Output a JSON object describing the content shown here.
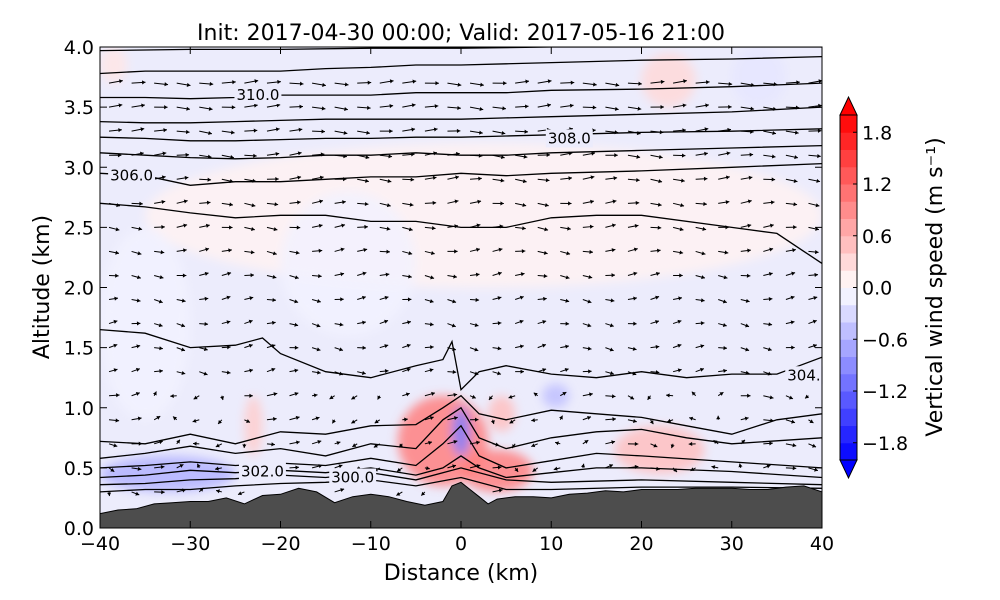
{
  "chart_data": {
    "type": "contour-filled cross-section",
    "title": "Init: 2017-04-30 00:00; Valid: 2017-05-16 21:00",
    "xlabel": "Distance (km)",
    "ylabel": "Altitude (km)",
    "xlim": [
      -40,
      40
    ],
    "ylim": [
      0.0,
      4.0
    ],
    "xticks": [
      -40,
      -30,
      -20,
      -10,
      0,
      10,
      20,
      30,
      40
    ],
    "xtick_labels": [
      "−40",
      "−30",
      "−20",
      "−10",
      "0",
      "10",
      "20",
      "30",
      "40"
    ],
    "yticks": [
      0.0,
      0.5,
      1.0,
      1.5,
      2.0,
      2.5,
      3.0,
      3.5,
      4.0
    ],
    "ytick_labels": [
      "0.0",
      "0.5",
      "1.0",
      "1.5",
      "2.0",
      "2.5",
      "3.0",
      "3.5",
      "4.0"
    ],
    "colorbar": {
      "label": "Vertical wind speed (m s⁻¹)",
      "range": [
        -2.0,
        2.0
      ],
      "ticks": [
        -1.8,
        -1.2,
        -0.6,
        0.0,
        0.6,
        1.2,
        1.8
      ],
      "tick_labels": [
        "−1.8",
        "−1.2",
        "−0.6",
        "0.0",
        "0.6",
        "1.2",
        "1.8"
      ],
      "negative_color": "#0000ff",
      "positive_color": "#ff0000",
      "neutral_color": "#ffffff"
    },
    "terrain": {
      "color": "#4d4d4d",
      "x": [
        -40,
        -38,
        -36,
        -34,
        -32,
        -30,
        -28,
        -26,
        -24,
        -22,
        -20,
        -18,
        -16,
        -14,
        -12,
        -10,
        -8,
        -6,
        -4,
        -2,
        -1,
        0,
        1,
        2,
        3,
        4,
        6,
        8,
        10,
        12,
        14,
        16,
        18,
        20,
        22,
        24,
        26,
        28,
        30,
        32,
        34,
        36,
        38,
        40
      ],
      "y": [
        0.12,
        0.15,
        0.16,
        0.2,
        0.21,
        0.22,
        0.22,
        0.25,
        0.2,
        0.27,
        0.28,
        0.33,
        0.3,
        0.21,
        0.26,
        0.28,
        0.26,
        0.22,
        0.19,
        0.22,
        0.35,
        0.38,
        0.32,
        0.26,
        0.2,
        0.24,
        0.26,
        0.26,
        0.25,
        0.28,
        0.29,
        0.31,
        0.3,
        0.32,
        0.32,
        0.32,
        0.33,
        0.33,
        0.33,
        0.32,
        0.32,
        0.34,
        0.35,
        0.3
      ]
    },
    "isentropes": [
      {
        "x": [
          -40,
          -35,
          -30,
          -25,
          -20,
          -15,
          -10,
          -5,
          0,
          5,
          10,
          20,
          30,
          40
        ],
        "y": [
          0.3,
          0.32,
          0.32,
          0.35,
          0.37,
          0.38,
          0.4,
          0.35,
          0.42,
          0.32,
          0.32,
          0.34,
          0.34,
          0.33
        ]
      },
      {
        "x": [
          -40,
          -35,
          -30,
          -25,
          -20,
          -15,
          -10,
          -5,
          0,
          5,
          10,
          20,
          30,
          40
        ],
        "y": [
          0.36,
          0.37,
          0.4,
          0.41,
          0.44,
          0.42,
          0.46,
          0.4,
          0.5,
          0.4,
          0.38,
          0.4,
          0.38,
          0.36
        ]
      },
      {
        "x": [
          -40,
          -35,
          -30,
          -25,
          -20,
          -15,
          -10,
          -5,
          -2,
          0,
          2,
          5,
          10,
          15,
          20,
          30,
          40
        ],
        "y": [
          0.42,
          0.44,
          0.48,
          0.46,
          0.48,
          0.46,
          0.5,
          0.44,
          0.5,
          0.6,
          0.5,
          0.42,
          0.46,
          0.5,
          0.5,
          0.47,
          0.42
        ]
      },
      {
        "x": [
          -40,
          -35,
          -30,
          -25,
          -20,
          -15,
          -10,
          -5,
          -2,
          0,
          2,
          5,
          10,
          15,
          20,
          30,
          40
        ],
        "y": [
          0.5,
          0.52,
          0.55,
          0.52,
          0.54,
          0.52,
          0.58,
          0.52,
          0.7,
          0.85,
          0.6,
          0.5,
          0.56,
          0.62,
          0.6,
          0.55,
          0.5
        ]
      },
      {
        "x": [
          -40,
          -35,
          -30,
          -25,
          -20,
          -15,
          -10,
          -5,
          -2,
          0,
          2,
          5,
          10,
          15,
          20,
          25,
          30,
          40
        ],
        "y": [
          0.58,
          0.62,
          0.68,
          0.62,
          0.66,
          0.6,
          0.7,
          0.66,
          0.9,
          1.0,
          0.75,
          0.66,
          0.75,
          0.8,
          0.82,
          0.75,
          0.7,
          0.75
        ]
      },
      {
        "x": [
          -40,
          -35,
          -30,
          -25,
          -20,
          -15,
          -10,
          -5,
          -2,
          0,
          2,
          5,
          10,
          15,
          20,
          25,
          30,
          35,
          40
        ],
        "y": [
          0.72,
          0.7,
          0.78,
          0.7,
          0.8,
          0.78,
          0.85,
          0.86,
          1.0,
          1.1,
          0.95,
          0.9,
          0.98,
          0.95,
          0.92,
          0.85,
          0.78,
          0.9,
          0.95
        ]
      },
      {
        "x": [
          -40,
          -35,
          -30,
          -25,
          -22,
          -20,
          -15,
          -10,
          -5,
          -2,
          -1,
          0,
          2,
          5,
          10,
          15,
          20,
          25,
          30,
          35,
          40
        ],
        "y": [
          1.65,
          1.62,
          1.5,
          1.52,
          1.58,
          1.45,
          1.3,
          1.25,
          1.35,
          1.4,
          1.55,
          1.15,
          1.3,
          1.35,
          1.28,
          1.25,
          1.3,
          1.25,
          1.28,
          1.28,
          1.42
        ]
      },
      {
        "x": [
          -40,
          -35,
          -30,
          -25,
          -20,
          -15,
          -10,
          -5,
          0,
          5,
          10,
          15,
          20,
          30,
          35,
          38,
          40
        ],
        "y": [
          2.7,
          2.67,
          2.62,
          2.58,
          2.6,
          2.6,
          2.55,
          2.55,
          2.5,
          2.5,
          2.58,
          2.6,
          2.6,
          2.5,
          2.45,
          2.3,
          2.2
        ]
      },
      {
        "x": [
          -40,
          -35,
          -30,
          -25,
          -20,
          -15,
          -10,
          -5,
          0,
          5,
          10,
          20,
          30,
          40
        ],
        "y": [
          2.95,
          2.93,
          2.85,
          2.88,
          2.88,
          2.9,
          2.92,
          2.92,
          2.95,
          2.93,
          2.95,
          2.97,
          3.0,
          3.03
        ]
      },
      {
        "x": [
          -40,
          -35,
          -30,
          -25,
          -20,
          -15,
          -10,
          -5,
          0,
          5,
          10,
          20,
          30,
          40
        ],
        "y": [
          3.12,
          3.1,
          3.08,
          3.07,
          3.08,
          3.1,
          3.1,
          3.12,
          3.1,
          3.1,
          3.12,
          3.14,
          3.16,
          3.18
        ]
      },
      {
        "x": [
          -40,
          -35,
          -30,
          -25,
          -20,
          -15,
          -10,
          -5,
          0,
          5,
          10,
          20,
          30,
          40
        ],
        "y": [
          3.25,
          3.24,
          3.22,
          3.22,
          3.23,
          3.24,
          3.24,
          3.25,
          3.25,
          3.26,
          3.27,
          3.29,
          3.3,
          3.32
        ]
      },
      {
        "x": [
          -40,
          -35,
          -30,
          -25,
          -20,
          -15,
          -10,
          -5,
          0,
          5,
          10,
          20,
          30,
          40
        ],
        "y": [
          3.38,
          3.37,
          3.37,
          3.38,
          3.39,
          3.4,
          3.4,
          3.4,
          3.4,
          3.41,
          3.42,
          3.44,
          3.46,
          3.5
        ]
      },
      {
        "x": [
          -40,
          -35,
          -30,
          -25,
          -20,
          -15,
          -10,
          -5,
          0,
          5,
          10,
          20,
          30,
          40
        ],
        "y": [
          3.58,
          3.58,
          3.57,
          3.58,
          3.6,
          3.6,
          3.6,
          3.62,
          3.62,
          3.62,
          3.64,
          3.65,
          3.67,
          3.7
        ]
      },
      {
        "x": [
          -40,
          -35,
          -30,
          -25,
          -20,
          -15,
          -10,
          -5,
          0,
          5,
          10,
          20,
          30,
          40
        ],
        "y": [
          3.78,
          3.8,
          3.8,
          3.8,
          3.8,
          3.82,
          3.83,
          3.85,
          3.85,
          3.86,
          3.87,
          3.89,
          3.9,
          3.92
        ]
      },
      {
        "x": [
          -40,
          -30,
          -20,
          -10,
          0,
          10,
          20,
          30,
          40
        ],
        "y": [
          3.97,
          3.98,
          3.98,
          3.99,
          3.99,
          4.0,
          4.0,
          4.0,
          4.0
        ]
      }
    ],
    "contour_labels": [
      {
        "text": "310.0",
        "x": -22.5,
        "y": 3.6
      },
      {
        "text": "308.0",
        "x": 12.0,
        "y": 3.24
      },
      {
        "text": "306.0",
        "x": -36.5,
        "y": 2.93
      },
      {
        "text": "304.",
        "x": 38.0,
        "y": 1.27
      },
      {
        "text": "302.0",
        "x": -22.0,
        "y": 0.47
      },
      {
        "text": "300.0",
        "x": -12.0,
        "y": 0.42
      }
    ],
    "updraft_regions": [
      {
        "x": [
          -7,
          3
        ],
        "y": [
          0.35,
          1.1
        ],
        "w": 1.0
      },
      {
        "x": [
          0,
          8
        ],
        "y": [
          0.3,
          0.65
        ],
        "w": 1.0
      },
      {
        "x": [
          3,
          6
        ],
        "y": [
          0.8,
          1.1
        ],
        "w": 0.5
      },
      {
        "x": [
          17,
          27
        ],
        "y": [
          0.45,
          0.85
        ],
        "w": 0.5
      },
      {
        "x": [
          -24,
          -22
        ],
        "y": [
          0.6,
          1.1
        ],
        "w": 0.4
      },
      {
        "x": [
          -35,
          40
        ],
        "y": [
          2.0,
          3.2
        ],
        "w": 0.1
      },
      {
        "x": [
          20,
          26
        ],
        "y": [
          3.5,
          3.95
        ],
        "w": 0.3
      },
      {
        "x": [
          -40,
          -37
        ],
        "y": [
          3.7,
          4.0
        ],
        "w": 0.2
      }
    ],
    "downdraft_regions": [
      {
        "x": [
          -40,
          -25
        ],
        "y": [
          0.3,
          0.6
        ],
        "w": -0.6
      },
      {
        "x": [
          -1,
          1
        ],
        "y": [
          0.6,
          1.0
        ],
        "w": -1.0
      },
      {
        "x": [
          9,
          12
        ],
        "y": [
          1.0,
          1.2
        ],
        "w": -0.5
      },
      {
        "x": [
          -40,
          -30
        ],
        "y": [
          0.9,
          2.5
        ],
        "w": -0.1
      },
      {
        "x": [
          -20,
          -5
        ],
        "y": [
          1.6,
          2.8
        ],
        "w": -0.1
      },
      {
        "x": [
          30,
          36
        ],
        "y": [
          3.5,
          4.0
        ],
        "w": -0.2
      }
    ]
  }
}
